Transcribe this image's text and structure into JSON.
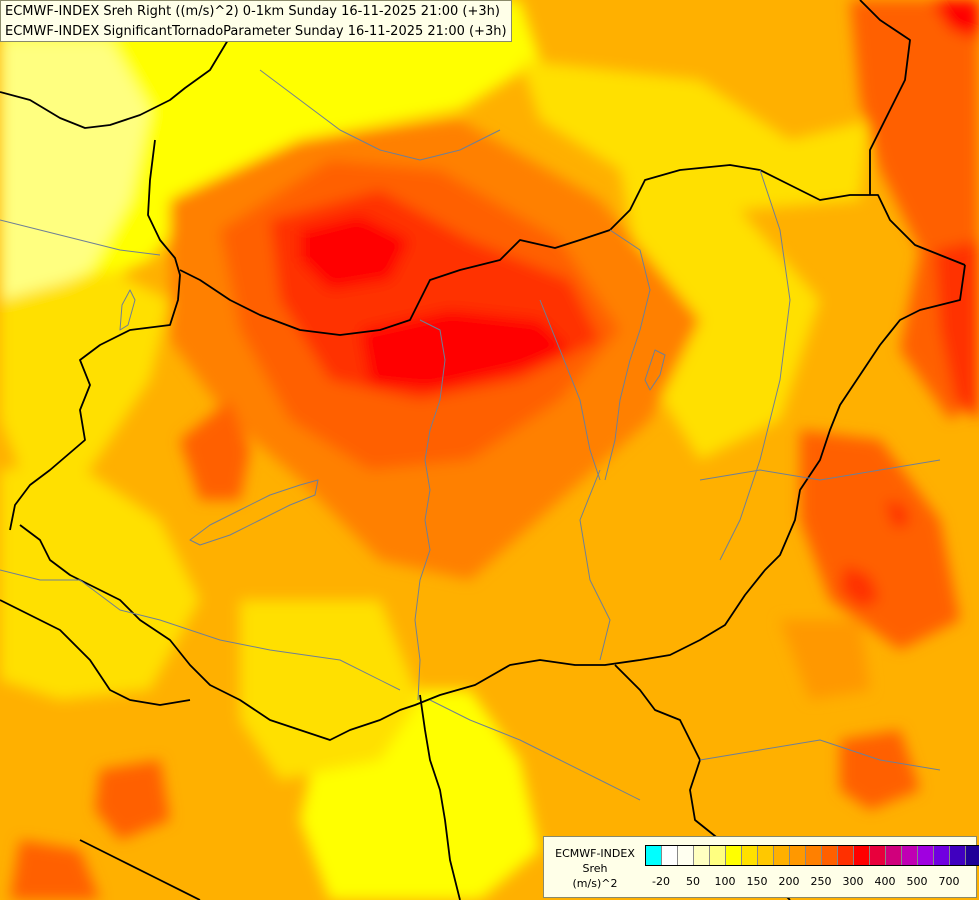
{
  "title_lines": [
    "ECMWF-INDEX Sreh Right ((m/s)^2) 0-1km Sunday 16-11-2025 21:00 (+3h)",
    "ECMWF-INDEX SignificantTornadoParameter Sunday 16-11-2025 21:00 (+3h)"
  ],
  "legend": {
    "label_lines": [
      "ECMWF-INDEX",
      "Sreh",
      "(m/s)^2"
    ],
    "colors": [
      "#00ffff",
      "#ffffff",
      "#fffff0",
      "#ffffc0",
      "#ffff80",
      "#ffff00",
      "#ffe000",
      "#ffc800",
      "#ffb000",
      "#ff9800",
      "#ff8000",
      "#ff6000",
      "#ff3000",
      "#ff0000",
      "#e8003c",
      "#d0007c",
      "#c000b4",
      "#a000e0",
      "#7000e0",
      "#4000c0",
      "#200098",
      "#000080"
    ],
    "ticks": [
      "-20",
      "50",
      "100",
      "150",
      "200",
      "250",
      "300",
      "400",
      "500",
      "700"
    ]
  },
  "map": {
    "regions": [
      {
        "level": "light-yellow",
        "color": "#ffff80"
      },
      {
        "level": "yellow",
        "color": "#ffff00"
      },
      {
        "level": "gold",
        "color": "#ffe000"
      },
      {
        "level": "light-orange",
        "color": "#ffc800"
      },
      {
        "level": "orange",
        "color": "#ff9800"
      },
      {
        "level": "dark-orange",
        "color": "#ff8000"
      },
      {
        "level": "red-orange",
        "color": "#ff6000"
      },
      {
        "level": "orange-red",
        "color": "#ff3000"
      },
      {
        "level": "red",
        "color": "#ff0000"
      }
    ],
    "border_color": "#000000",
    "river_color": "#6e7f96"
  }
}
